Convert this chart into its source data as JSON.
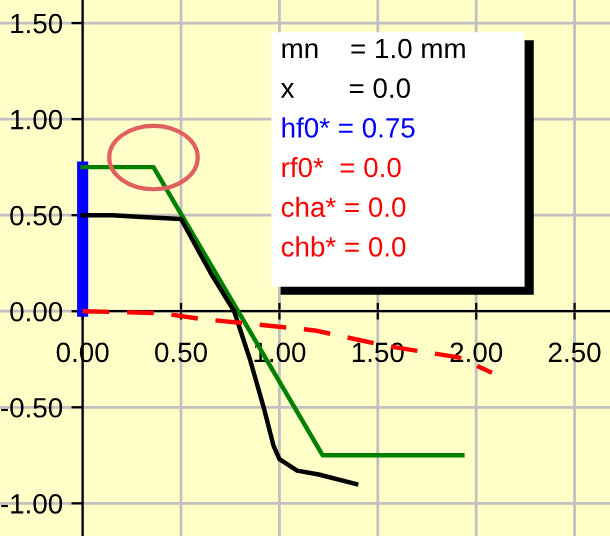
{
  "chart_data": {
    "type": "line",
    "xlim": [
      -0.42,
      2.68
    ],
    "ylim": [
      -1.17,
      1.62
    ],
    "xticks": [
      {
        "value": 0,
        "label": "0.00"
      },
      {
        "value": 0.5,
        "label": "0.50"
      },
      {
        "value": 1,
        "label": "1.00"
      },
      {
        "value": 1.5,
        "label": "1.50"
      },
      {
        "value": 2,
        "label": "2.00"
      },
      {
        "value": 2.5,
        "label": "2.50"
      }
    ],
    "yticks": [
      {
        "value": -1,
        "label": "-1.00"
      },
      {
        "value": -0.5,
        "label": "-0.50"
      },
      {
        "value": 0,
        "label": "0.00"
      },
      {
        "value": 0.5,
        "label": "0.50"
      },
      {
        "value": 1,
        "label": "1.00"
      },
      {
        "value": 1.5,
        "label": "1.50"
      }
    ],
    "grid": true,
    "series": [
      {
        "color": "#0000ff",
        "x": [
          0,
          0
        ],
        "values": [
          0,
          0.75
        ]
      },
      {
        "color": "#008000",
        "x": [
          0,
          0.36,
          1.22,
          1.93
        ],
        "values": [
          0.75,
          0.75,
          -0.75,
          -0.75
        ]
      },
      {
        "color": "#000000",
        "x": [
          0,
          0.15,
          0.3,
          0.5,
          0.65,
          0.77,
          0.85,
          0.92,
          0.97,
          1.0,
          1.09,
          1.2,
          1.39
        ],
        "values": [
          0.5,
          0.5,
          0.49,
          0.48,
          0.2,
          0.0,
          -0.25,
          -0.5,
          -0.7,
          -0.77,
          -0.83,
          -0.85,
          -0.9
        ]
      },
      {
        "color": "#ff0000",
        "line_style": "dashed",
        "x": [
          0,
          0.4,
          0.6,
          0.9,
          1.18,
          1.54,
          1.91,
          2.08
        ],
        "values": [
          0,
          -0.01,
          -0.04,
          -0.07,
          -0.1,
          -0.18,
          -0.24,
          -0.32
        ]
      }
    ],
    "annotations": [
      "mn    = 1.0 mm",
      "x       = 0.0",
      "hf0* = 0.75",
      "rf0*  = 0.0",
      "cha* = 0.0",
      "chb* = 0.0"
    ]
  }
}
